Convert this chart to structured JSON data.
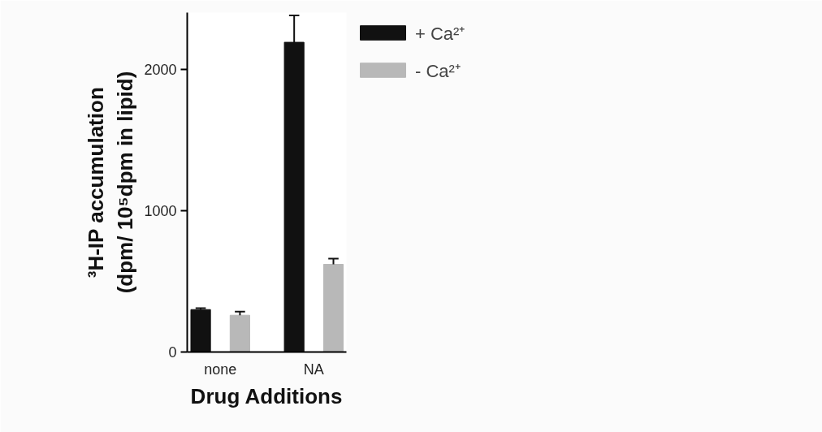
{
  "chart_data": {
    "type": "bar",
    "xlabel": "Drug Additions",
    "ylabel": "³H-IP accumulation (dpm/ 10⁵dpm in lipid)",
    "categories": [
      "none",
      "NA"
    ],
    "series": [
      {
        "name": "+ Ca²⁺",
        "color": "#111111",
        "values": [
          300,
          2190
        ],
        "errors": [
          10,
          190
        ]
      },
      {
        "name": "- Ca²⁺",
        "color": "#b8b8b8",
        "values": [
          260,
          620
        ],
        "errors": [
          25,
          40
        ]
      }
    ],
    "ylim": [
      0,
      2400
    ],
    "yticks": [
      0,
      1000,
      2000
    ],
    "grid": false,
    "legend": "top right"
  }
}
